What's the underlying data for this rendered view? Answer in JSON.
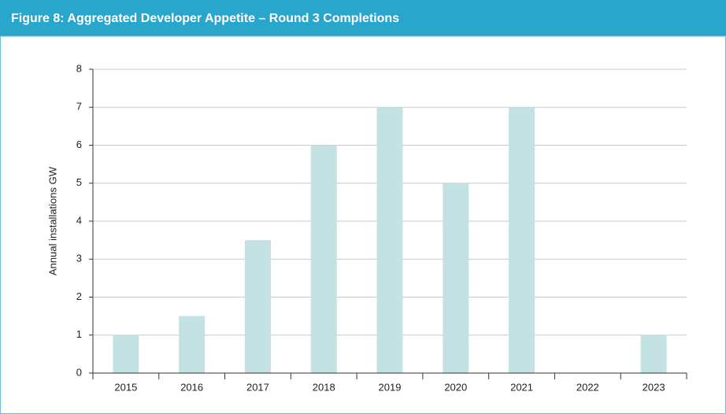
{
  "chart_data": {
    "type": "bar",
    "title": "Figure 8: Aggregated Developer Appetite – Round 3 Completions",
    "y_label": "Annual installations GW",
    "categories": [
      "2015",
      "2016",
      "2017",
      "2018",
      "2019",
      "2020",
      "2021",
      "2022",
      "2023"
    ],
    "values": [
      1,
      1.5,
      3.5,
      6,
      7,
      5,
      7,
      0,
      1
    ],
    "color": "#c4e2e4",
    "ylim": [
      0,
      8
    ],
    "yticks": [
      0,
      1,
      2,
      3,
      4,
      5,
      6,
      7,
      8
    ],
    "grid": true
  }
}
